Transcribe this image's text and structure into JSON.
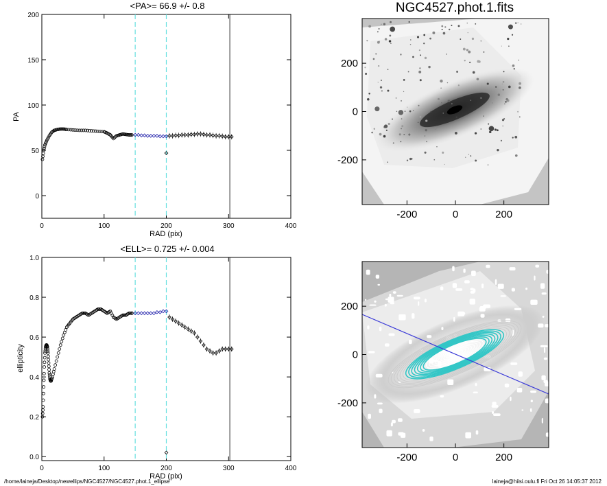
{
  "footer": {
    "path": "/home/laineja/Desktop/newellips/NGC4527/NGC4527.phot.1_ellipse",
    "user_time": "laineja@hiisi.oulu.fi  Fri Oct 26 14:05:37 2012"
  },
  "chart_data": [
    {
      "id": "pa_profile",
      "type": "scatter",
      "title": "<PA>=  66.9 +/-   0.8",
      "xlabel": "RAD (pix)",
      "ylabel": "PA",
      "xlim": [
        0,
        400
      ],
      "ylim": [
        -25,
        200
      ],
      "xticks": [
        0,
        100,
        200,
        300,
        400
      ],
      "yticks": [
        0,
        50,
        100,
        150,
        200
      ],
      "vlines": {
        "cyan_dashed": [
          150,
          200
        ],
        "black_solid": [
          302
        ]
      },
      "colors": {
        "black": "#000000",
        "blue": "#1a1aa8",
        "cyan": "#66e0e0"
      },
      "series": [
        {
          "x": [
            1,
            3,
            5,
            8,
            12,
            16,
            20,
            25,
            30,
            35,
            40,
            50,
            60,
            70,
            80,
            90,
            100,
            105,
            110,
            115,
            120,
            125,
            130,
            135,
            140,
            145
          ],
          "y": [
            40,
            50,
            56,
            61,
            66,
            70,
            72,
            73,
            73.5,
            73.5,
            73,
            72.5,
            72,
            72,
            71.5,
            71,
            70.5,
            69,
            67,
            63,
            66,
            67,
            68,
            67.5,
            67,
            67
          ]
        },
        {
          "x": [
            150,
            155,
            160,
            165,
            170,
            175,
            180,
            185,
            190,
            195,
            200
          ],
          "y": [
            67,
            67,
            66.5,
            66.5,
            66,
            66,
            66,
            66,
            65.5,
            65.5,
            65.5
          ]
        },
        {
          "x": [
            200
          ],
          "y": [
            47
          ]
        },
        {
          "x": [
            205,
            210,
            215,
            220,
            225,
            230,
            235,
            240,
            245,
            250,
            255,
            260,
            265,
            270,
            275,
            280,
            285,
            290,
            295,
            300,
            305
          ],
          "y": [
            66,
            66,
            66.5,
            66.5,
            67,
            67,
            67,
            67.5,
            67.5,
            68,
            68,
            67.5,
            67,
            67,
            66.5,
            66,
            66,
            65.5,
            65,
            65,
            65
          ]
        }
      ]
    },
    {
      "id": "ell_profile",
      "type": "scatter",
      "title": "<ELL>= 0.725 +/-  0.004",
      "xlabel": "RAD (pix)",
      "ylabel": "ellipticity",
      "xlim": [
        0,
        400
      ],
      "ylim": [
        -0.02,
        1.0
      ],
      "xticks": [
        0,
        100,
        200,
        300,
        400
      ],
      "yticks": [
        0.0,
        0.2,
        0.4,
        0.6,
        0.8,
        1.0
      ],
      "vlines": {
        "cyan_dashed": [
          150,
          200
        ],
        "black_solid": [
          302
        ]
      },
      "series": [
        {
          "x": [
            1,
            2,
            3,
            4,
            5,
            6,
            7,
            8,
            9,
            10,
            11,
            12,
            13,
            14,
            15,
            17,
            20,
            25,
            30,
            35,
            40,
            45,
            50,
            55,
            60,
            65,
            70,
            75,
            80,
            85,
            90,
            95,
            100,
            105,
            110,
            115,
            120,
            125,
            130,
            135,
            140,
            145
          ],
          "y": [
            0.2,
            0.25,
            0.35,
            0.45,
            0.52,
            0.55,
            0.56,
            0.56,
            0.55,
            0.52,
            0.47,
            0.42,
            0.39,
            0.38,
            0.38,
            0.4,
            0.44,
            0.5,
            0.56,
            0.61,
            0.65,
            0.67,
            0.69,
            0.7,
            0.71,
            0.72,
            0.72,
            0.71,
            0.72,
            0.73,
            0.74,
            0.74,
            0.73,
            0.72,
            0.73,
            0.7,
            0.69,
            0.7,
            0.71,
            0.71,
            0.72,
            0.72
          ]
        },
        {
          "x": [
            150,
            155,
            160,
            165,
            170,
            175,
            180,
            185,
            190,
            195,
            200
          ],
          "y": [
            0.72,
            0.72,
            0.72,
            0.72,
            0.72,
            0.72,
            0.72,
            0.725,
            0.725,
            0.73,
            0.73
          ]
        },
        {
          "x": [
            200
          ],
          "y": [
            0.02
          ]
        },
        {
          "x": [
            205,
            210,
            215,
            220,
            225,
            230,
            235,
            240,
            245,
            250,
            255,
            260,
            265,
            270,
            275,
            280,
            285,
            290,
            295,
            300,
            305
          ],
          "y": [
            0.7,
            0.69,
            0.68,
            0.67,
            0.66,
            0.65,
            0.64,
            0.63,
            0.62,
            0.6,
            0.58,
            0.56,
            0.54,
            0.53,
            0.52,
            0.52,
            0.53,
            0.54,
            0.54,
            0.54,
            0.54
          ]
        }
      ]
    },
    {
      "id": "image_top",
      "type": "heatmap",
      "title": "NGC4527.phot.1.fits",
      "xticks": [
        -200,
        0,
        200
      ],
      "yticks": [
        200,
        0,
        -200
      ],
      "xlim": [
        -385,
        385
      ],
      "ylim": [
        -385,
        385
      ]
    },
    {
      "id": "image_bottom",
      "type": "heatmap",
      "title": "",
      "xticks": [
        -200,
        0,
        200
      ],
      "yticks": [
        200,
        0,
        -200
      ],
      "xlim": [
        -385,
        385
      ],
      "ylim": [
        -385,
        385
      ],
      "overlay": {
        "line_color": "#3a3ad8",
        "pa_deg": 66.9,
        "ellipticity": 0.725,
        "contour_colors": [
          "#33c6c6",
          "#ffffff",
          "#cccccc"
        ]
      }
    }
  ]
}
